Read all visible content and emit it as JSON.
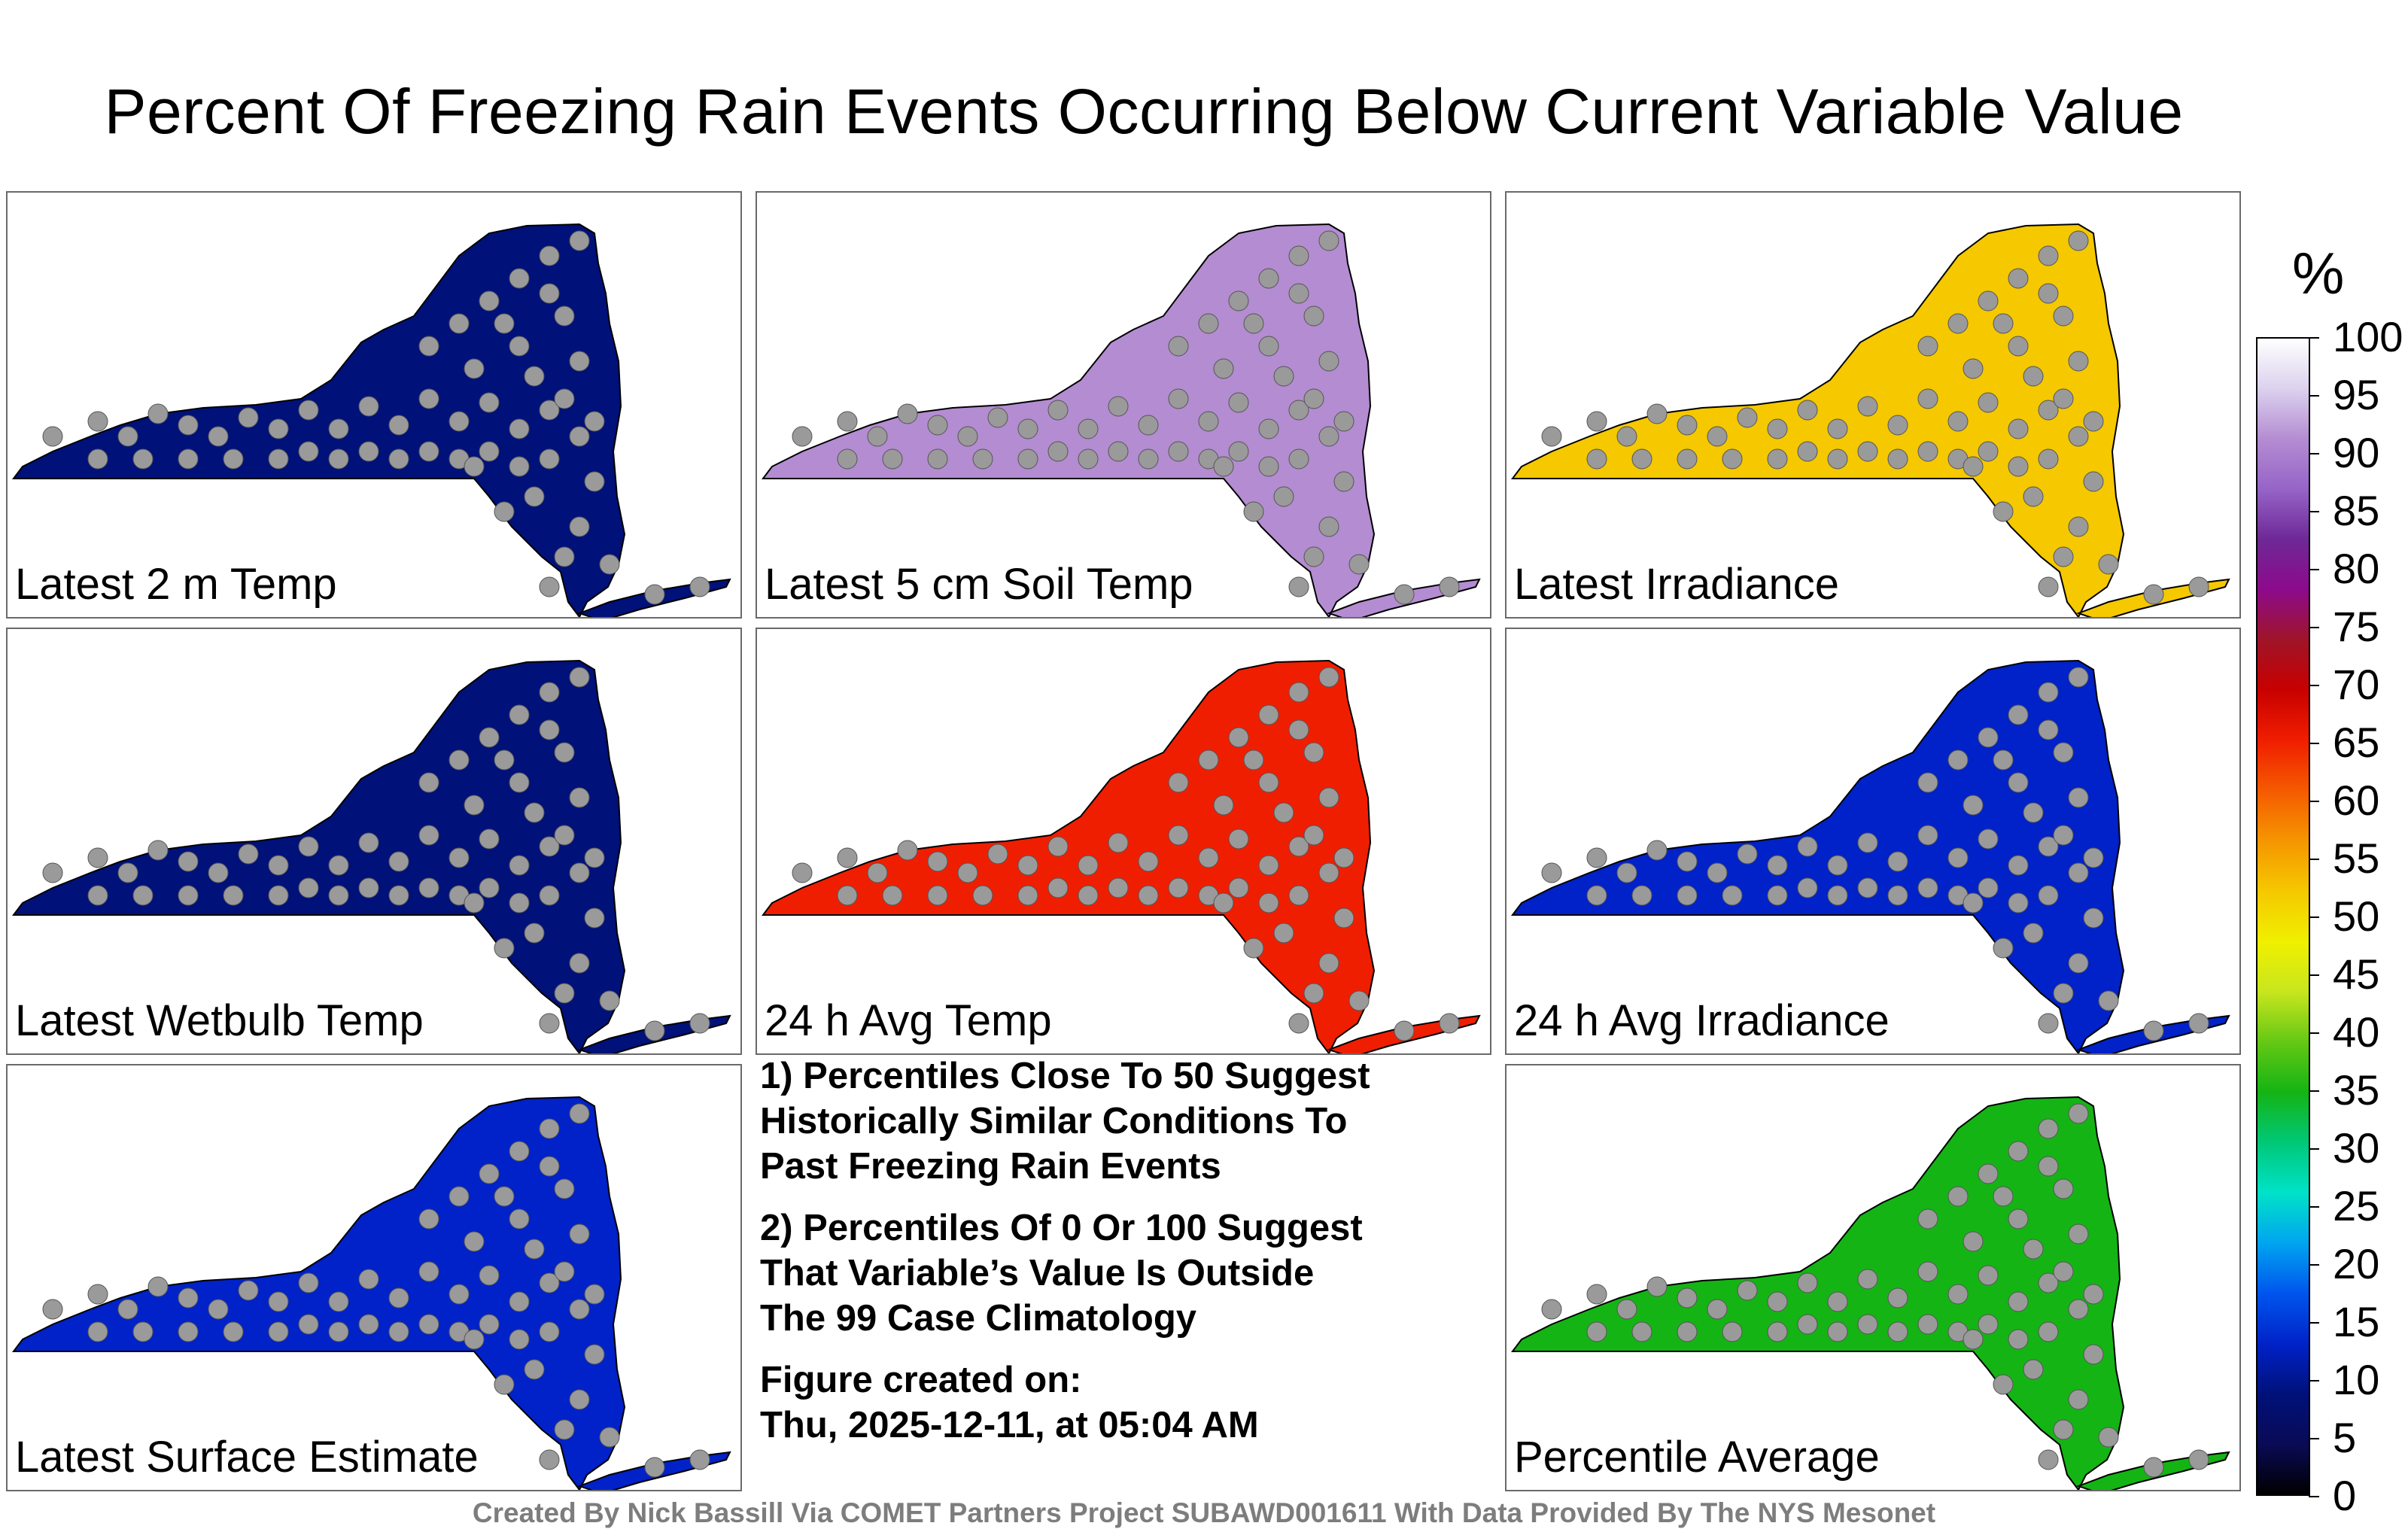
{
  "title": "Percent Of Freezing Rain Events Occurring Below Current Variable Value",
  "panels": [
    {
      "label": "Latest 2 m Temp",
      "value": 8
    },
    {
      "label": "Latest 5 cm Soil Temp",
      "value": 91
    },
    {
      "label": "Latest Irradiance",
      "value": 52
    },
    {
      "label": "Latest Wetbulb Temp",
      "value": 8
    },
    {
      "label": "24 h Avg Temp",
      "value": 65
    },
    {
      "label": "24 h Avg Irradiance",
      "value": 13
    },
    {
      "label": "Latest Surface Estimate",
      "value": 12
    },
    {
      "label": "Percentile Average",
      "value": 35
    }
  ],
  "notes": {
    "note1": "1) Percentiles Close To 50 Suggest\nHistorically Similar Conditions To\nPast Freezing Rain Events",
    "note2": "2) Percentiles Of 0 Or 100 Suggest\nThat Variable’s Value Is Outside\nThe 99 Case Climatology",
    "note3": "Figure created on:\nThu, 2025-12-11, at 05:04 AM"
  },
  "colorbar": {
    "unit": "%",
    "ticks": [
      "100",
      "95",
      "90",
      "85",
      "80",
      "75",
      "70",
      "65",
      "60",
      "55",
      "50",
      "45",
      "40",
      "35",
      "30",
      "25",
      "20",
      "15",
      "10",
      "5",
      "0"
    ],
    "colors": [
      "#000000",
      "#0a0a55",
      "#00117a",
      "#0022c8",
      "#0055ee",
      "#00a4f0",
      "#00e2c8",
      "#00c878",
      "#14b414",
      "#64c814",
      "#c8e61e",
      "#f0f000",
      "#f5c800",
      "#f59600",
      "#f55a00",
      "#f01e00",
      "#c80000",
      "#a01428",
      "#8c0a8c",
      "#6e2896",
      "#9664c8",
      "#b48cd2",
      "#dcd2ee",
      "#ffffff"
    ]
  },
  "credit": "Created By Nick Bassill Via COMET Partners Project SUBAWD001611 With Data Provided By The NYS Mesonet"
}
